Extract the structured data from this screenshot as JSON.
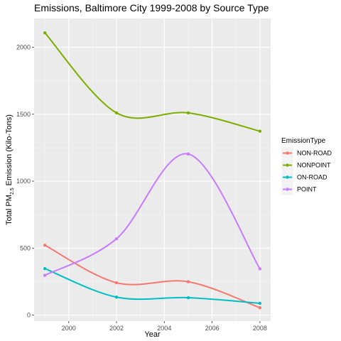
{
  "chart_data": {
    "type": "line",
    "title": "Emissions, Baltimore City 1999-2008 by Source Type",
    "xlabel": "Year",
    "ylabel": {
      "pre": "Total PM",
      "sub": "2.5",
      "post": " Emission (Kilo-Tons)"
    },
    "x": [
      1999,
      2002,
      2005,
      2008
    ],
    "x_ticks": [
      2000,
      2002,
      2004,
      2006,
      2008
    ],
    "x_tick_labels": [
      "2000",
      "2002",
      "2004",
      "2006",
      "2008"
    ],
    "y_ticks": [
      0,
      500,
      1000,
      1500,
      2000
    ],
    "y_tick_labels": [
      "0",
      "500",
      "1000",
      "1500",
      "2000"
    ],
    "xlim": [
      1998.55,
      2008.45
    ],
    "ylim": [
      -45,
      2215
    ],
    "grid": true,
    "legend_title": "EmissionType",
    "legend_position": "right",
    "series": [
      {
        "name": "NON-ROAD",
        "color": "#F8766D",
        "values": [
          522,
          241,
          249,
          55
        ]
      },
      {
        "name": "NONPOINT",
        "color": "#7CAE00",
        "values": [
          2108,
          1510,
          1510,
          1373
        ]
      },
      {
        "name": "ON-ROAD",
        "color": "#00BFC4",
        "values": [
          347,
          134,
          130,
          88
        ]
      },
      {
        "name": "POINT",
        "color": "#C77CFF",
        "values": [
          297,
          570,
          1203,
          345
        ]
      }
    ]
  }
}
